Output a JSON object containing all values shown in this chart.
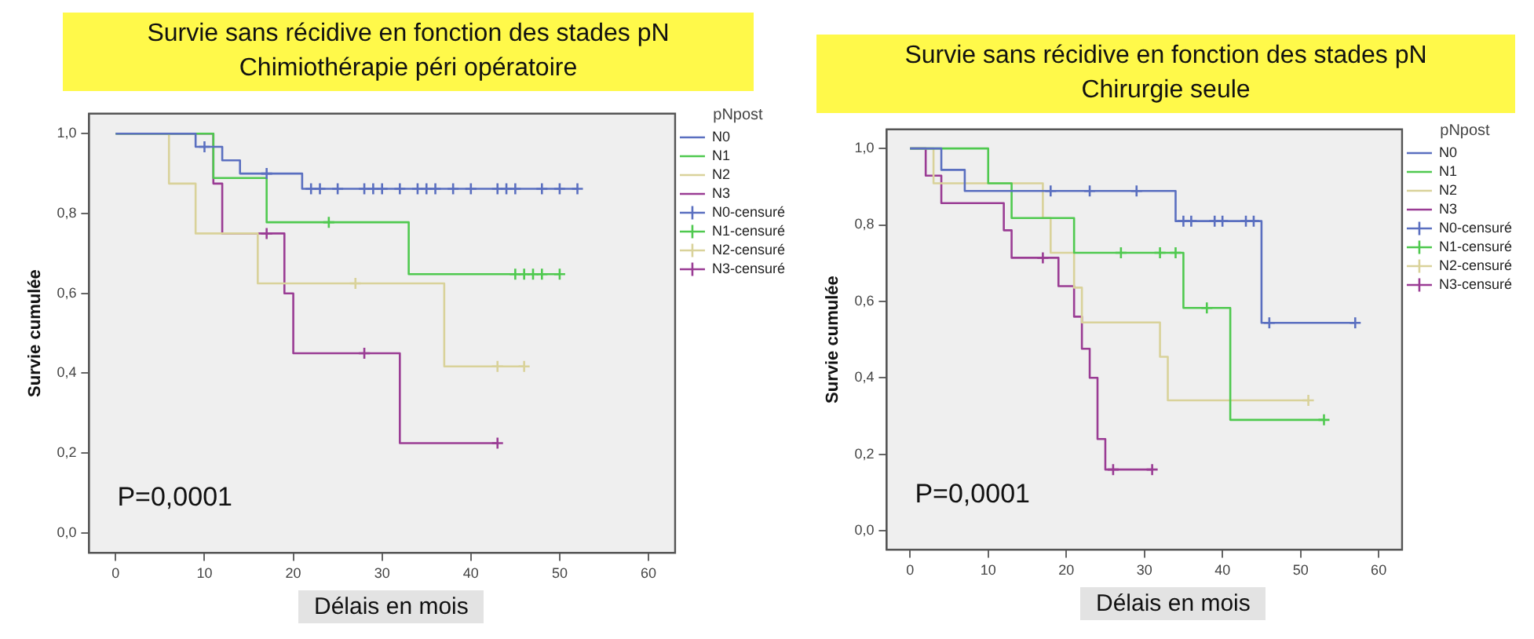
{
  "chart_data": [
    {
      "type": "step",
      "title": "Survie sans récidive en fonction des stades pN",
      "subtitle": "Chimiothérapie péri opératoire",
      "xlabel": "Délais en mois",
      "ylabel": "Survie cumulée",
      "legend_title": "pNpost",
      "legend": "top right",
      "grid": false,
      "annotations": [
        "P=0,0001"
      ],
      "xlim": [
        -3,
        63
      ],
      "xticks": [
        0,
        10,
        20,
        30,
        40,
        50,
        60
      ],
      "ylim": [
        -0.05,
        1.05
      ],
      "yticks": [
        {
          "value": 0,
          "label": "0,0"
        },
        {
          "value": 0.2,
          "label": "0,2"
        },
        {
          "value": 0.4,
          "label": "0,4"
        },
        {
          "value": 0.6,
          "label": "0,6"
        },
        {
          "value": 0.8,
          "label": "0,8"
        },
        {
          "value": 1,
          "label": "1,0"
        }
      ],
      "series": [
        {
          "name": "N0",
          "marker": "none",
          "color": "#5a6fc0",
          "x": [
            0,
            9,
            12,
            14,
            21,
            52
          ],
          "values": [
            1,
            0.967,
            0.933,
            0.9,
            0.862,
            0.862
          ]
        },
        {
          "name": "N1",
          "marker": "none",
          "color": "#4fc94f",
          "x": [
            0,
            11,
            17,
            33,
            50
          ],
          "values": [
            1,
            0.889,
            0.778,
            0.648,
            0.648
          ]
        },
        {
          "name": "N2",
          "marker": "none",
          "color": "#d9d29a",
          "x": [
            0,
            6,
            9,
            16,
            37,
            46
          ],
          "values": [
            1,
            0.875,
            0.75,
            0.625,
            0.417,
            0.417
          ]
        },
        {
          "name": "N3",
          "marker": "none",
          "color": "#9a3c94",
          "x": [
            0,
            11,
            12,
            19,
            20,
            32,
            43
          ],
          "values": [
            1,
            0.875,
            0.75,
            0.6,
            0.45,
            0.225,
            0.225
          ]
        },
        {
          "name": "N0-censuré",
          "type": "scatter",
          "marker": "cross",
          "color": "#5a6fc0",
          "x": [
            10,
            17,
            22,
            23,
            25,
            28,
            29,
            30,
            32,
            34,
            35,
            36,
            38,
            40,
            43,
            44,
            45,
            48,
            50,
            52
          ],
          "values": [
            0.967,
            0.9,
            0.862,
            0.862,
            0.862,
            0.862,
            0.862,
            0.862,
            0.862,
            0.862,
            0.862,
            0.862,
            0.862,
            0.862,
            0.862,
            0.862,
            0.862,
            0.862,
            0.862,
            0.862
          ]
        },
        {
          "name": "N1-censuré",
          "type": "scatter",
          "marker": "cross",
          "color": "#4fc94f",
          "x": [
            24,
            45,
            46,
            47,
            48,
            50
          ],
          "values": [
            0.778,
            0.648,
            0.648,
            0.648,
            0.648,
            0.648
          ]
        },
        {
          "name": "N2-censuré",
          "type": "scatter",
          "marker": "cross",
          "color": "#d9d29a",
          "x": [
            27,
            43,
            46
          ],
          "values": [
            0.625,
            0.417,
            0.417
          ]
        },
        {
          "name": "N3-censuré",
          "type": "scatter",
          "marker": "cross",
          "color": "#9a3c94",
          "x": [
            17,
            28,
            43
          ],
          "values": [
            0.75,
            0.45,
            0.225
          ]
        }
      ]
    },
    {
      "type": "step",
      "title": "Survie sans récidive en fonction des stades pN",
      "subtitle": "Chirurgie seule",
      "xlabel": "Délais en mois",
      "ylabel": "Survie cumulée",
      "legend_title": "pNpost",
      "legend": "top right",
      "grid": false,
      "annotations": [
        "P=0,0001"
      ],
      "xlim": [
        -3,
        63
      ],
      "xticks": [
        0,
        10,
        20,
        30,
        40,
        50,
        60
      ],
      "ylim": [
        -0.05,
        1.05
      ],
      "yticks": [
        {
          "value": 0,
          "label": "0,0"
        },
        {
          "value": 0.2,
          "label": "0,2"
        },
        {
          "value": 0.4,
          "label": "0,4"
        },
        {
          "value": 0.6,
          "label": "0,6"
        },
        {
          "value": 0.8,
          "label": "0,8"
        },
        {
          "value": 1,
          "label": "1,0"
        }
      ],
      "series": [
        {
          "name": "N0",
          "marker": "none",
          "color": "#5a6fc0",
          "x": [
            0,
            4,
            7,
            34,
            45,
            57
          ],
          "values": [
            1,
            0.944,
            0.889,
            0.81,
            0.544,
            0.544
          ]
        },
        {
          "name": "N1",
          "marker": "none",
          "color": "#4fc94f",
          "x": [
            0,
            10,
            13,
            21,
            35,
            41,
            53
          ],
          "values": [
            1,
            0.909,
            0.818,
            0.727,
            0.583,
            0.29,
            0.29
          ]
        },
        {
          "name": "N2",
          "marker": "none",
          "color": "#d9d29a",
          "x": [
            0,
            3,
            17,
            18,
            21,
            22,
            32,
            33,
            51
          ],
          "values": [
            1,
            0.909,
            0.818,
            0.727,
            0.636,
            0.545,
            0.455,
            0.341,
            0.341
          ]
        },
        {
          "name": "N3",
          "marker": "none",
          "color": "#9a3c94",
          "x": [
            0,
            2,
            4,
            12,
            13,
            19,
            21,
            22,
            23,
            24,
            25,
            31
          ],
          "values": [
            1,
            0.929,
            0.857,
            0.786,
            0.714,
            0.64,
            0.56,
            0.476,
            0.4,
            0.24,
            0.16,
            0.16
          ]
        },
        {
          "name": "N0-censuré",
          "type": "scatter",
          "marker": "cross",
          "color": "#5a6fc0",
          "x": [
            18,
            23,
            29,
            35,
            36,
            39,
            40,
            43,
            44,
            46,
            57
          ],
          "values": [
            0.889,
            0.889,
            0.889,
            0.81,
            0.81,
            0.81,
            0.81,
            0.81,
            0.81,
            0.544,
            0.544
          ]
        },
        {
          "name": "N1-censuré",
          "type": "scatter",
          "marker": "cross",
          "color": "#4fc94f",
          "x": [
            27,
            32,
            34,
            38,
            53
          ],
          "values": [
            0.727,
            0.727,
            0.727,
            0.583,
            0.29
          ]
        },
        {
          "name": "N2-censuré",
          "type": "scatter",
          "marker": "cross",
          "color": "#d9d29a",
          "x": [
            51
          ],
          "values": [
            0.341
          ]
        },
        {
          "name": "N3-censuré",
          "type": "scatter",
          "marker": "cross",
          "color": "#9a3c94",
          "x": [
            17,
            26,
            31
          ],
          "values": [
            0.714,
            0.16,
            0.16
          ]
        }
      ]
    }
  ]
}
